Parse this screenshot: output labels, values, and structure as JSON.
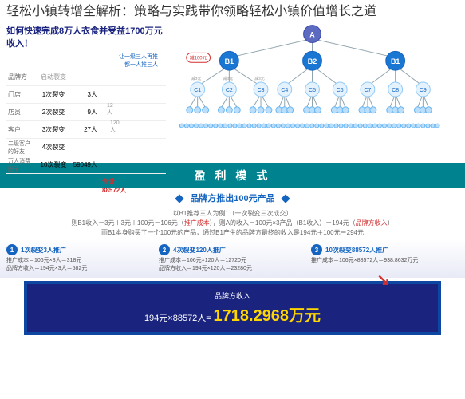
{
  "header": {
    "title": "轻松小镇转增全解析：策略与实践带你领略轻松小镇价值增长之道"
  },
  "leftPanel": {
    "topLine": "如何快速完成8万人衣食并受益1700万元收入！",
    "subNote1": "让一级三人再推",
    "subNote2": "都一人推三人",
    "columns": [
      "品牌方",
      "启动裂变"
    ],
    "rows": [
      {
        "label": "门店",
        "stage": "1次裂变",
        "count": "3人"
      },
      {
        "label": "店员",
        "stage": "2次裂变",
        "count": "9人"
      },
      {
        "label": "客户",
        "stage": "3次裂变",
        "count": "27人"
      },
      {
        "label": "二级客户的好友",
        "stage": "4次裂变",
        "count": ""
      },
      {
        "label": "万人消费圈子",
        "stage": "10次裂变",
        "count": "59049人"
      }
    ],
    "bracket1": "12人",
    "bracket2": "120人",
    "totalLabel": "合计:",
    "totalValue": "88572人"
  },
  "tree": {
    "root": "A",
    "b": [
      "B1",
      "B2",
      "B1"
    ],
    "c": [
      "C1",
      "C2",
      "C3",
      "C4",
      "C5",
      "C6",
      "C7",
      "C8",
      "C9"
    ],
    "redBadge": "减100元",
    "grayNotes": [
      "减3元",
      "减3元",
      "减3元"
    ],
    "colors": {
      "a": "#5c6bc0",
      "b": "#1976d2",
      "c": "#e3f2fd",
      "small": "#bbdefb",
      "edge": "#90a4ae"
    }
  },
  "profitBanner": "盈 利 模 式",
  "productBanner": "品牌方推出100元产品",
  "example": {
    "line1": "以B1推荐三人为例：（一次裂变三次成交）",
    "line2a": "则B1收入＝3元＋3元＋100元＝106元（",
    "line2b": "推广成本",
    "line2c": "），则A的收入＝100元×3产品（B1收入）＝194元（",
    "line2d": "品牌方收入",
    "line2e": "）",
    "line3": "而B1本身购买了一个100元的产品，通过B1产生的品牌方最终的收入是194元＋100元＝294元"
  },
  "threeCols": [
    {
      "num": "1",
      "title": "1次裂变3人推广",
      "l1": "推广成本＝106元×3人＝318元",
      "l2": "品牌方收入＝194元×3人＝582元"
    },
    {
      "num": "2",
      "title": "4次裂变120人推广",
      "l1": "推广成本＝106元×120人＝12720元",
      "l2": "品牌方收入＝194元×120人＝23280元"
    },
    {
      "num": "3",
      "title": "10次裂变88572人推广",
      "l1": "推广成本＝106元×88572人＝938.8632万元",
      "l2": ""
    }
  ],
  "final": {
    "label": "品牌方收入",
    "formula": "194元×88572人=",
    "result": "1718.2968万元"
  }
}
